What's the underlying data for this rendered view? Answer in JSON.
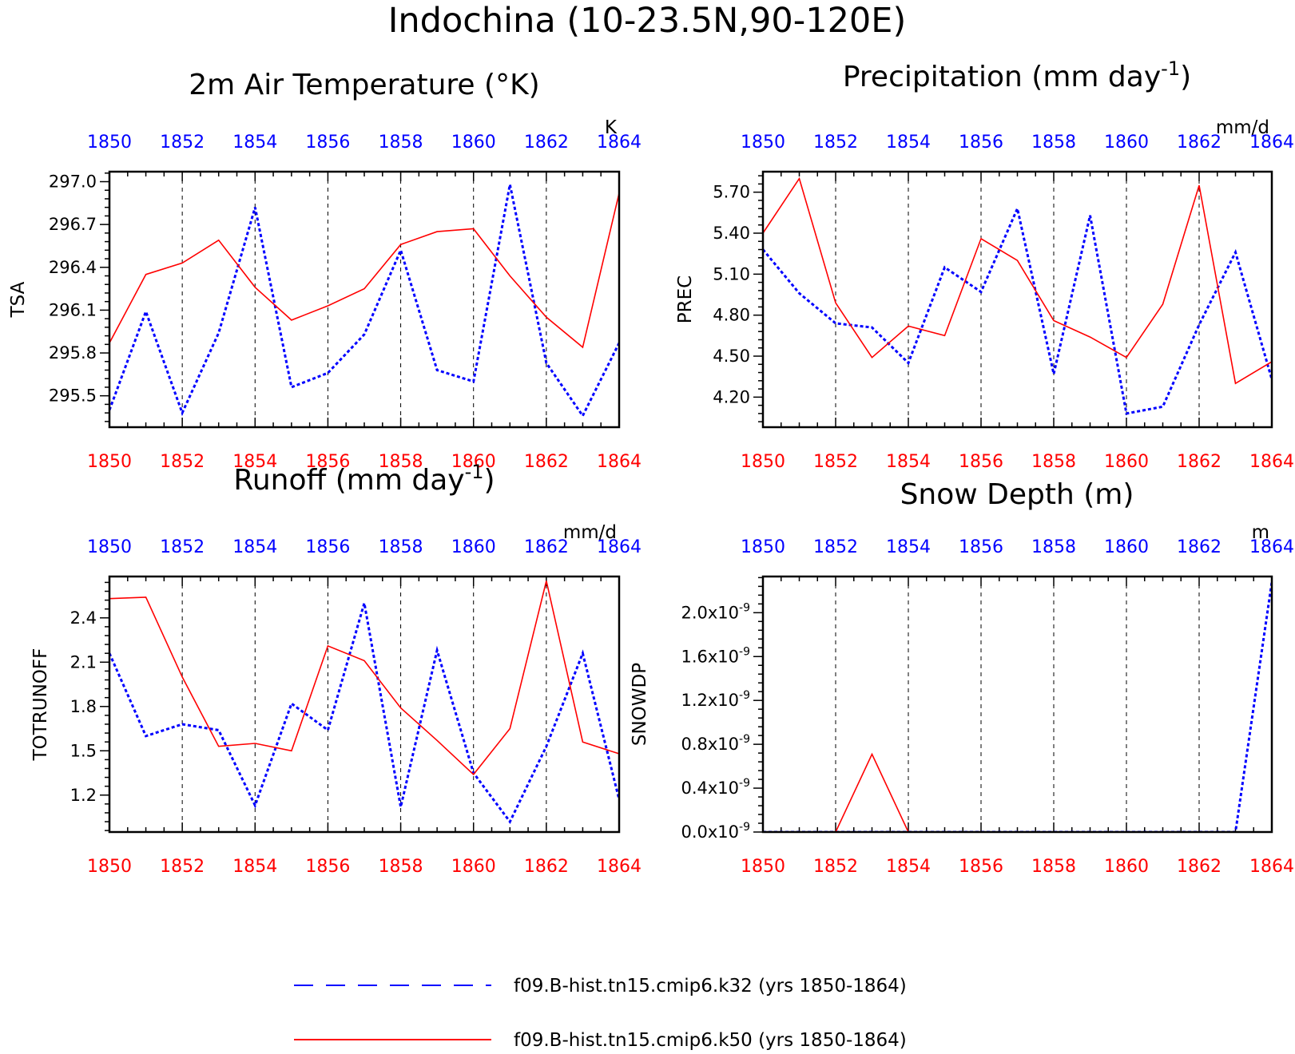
{
  "title": "Indochina (10-23.5N,90-120E)",
  "colors": {
    "k32": "#0000ff",
    "k50": "#ff0000",
    "axis": "#000000"
  },
  "legend": [
    {
      "series": "k32",
      "label": "f09.B-hist.tn15.cmip6.k32 (yrs 1850-1864)",
      "style": "dashed"
    },
    {
      "series": "k50",
      "label": "f09.B-hist.tn15.cmip6.k50 (yrs 1850-1864)",
      "style": "solid"
    }
  ],
  "chart_data": [
    {
      "type": "line",
      "title": "2m Air Temperature (°K)",
      "ylabel": "TSA",
      "units": "K",
      "xlim": [
        1850,
        1864
      ],
      "ylim": [
        295.28,
        297.07
      ],
      "yticks": [
        "295.5",
        "295.8",
        "296.1",
        "296.4",
        "296.7",
        "297.0"
      ],
      "ytick_values": [
        295.5,
        295.8,
        296.1,
        296.4,
        296.7,
        297.0
      ],
      "xticks": [
        "1850",
        "1852",
        "1854",
        "1856",
        "1858",
        "1860",
        "1862",
        "1864"
      ],
      "x": [
        1850,
        1851,
        1852,
        1853,
        1854,
        1855,
        1856,
        1857,
        1858,
        1859,
        1860,
        1861,
        1862,
        1863,
        1864
      ],
      "series": [
        {
          "key": "k32",
          "values": [
            295.4,
            296.09,
            295.38,
            295.94,
            296.82,
            295.56,
            295.66,
            295.93,
            296.52,
            295.68,
            295.6,
            296.98,
            295.73,
            295.36,
            295.87
          ]
        },
        {
          "key": "k50",
          "values": [
            295.87,
            296.35,
            296.43,
            296.59,
            296.26,
            296.03,
            296.13,
            296.25,
            296.56,
            296.65,
            296.67,
            296.34,
            296.05,
            295.84,
            296.92
          ]
        }
      ]
    },
    {
      "type": "line",
      "title": "Precipitation (mm day",
      "title_sup": "-1",
      "title_end": ")",
      "ylabel": "PREC",
      "units": "mm/d",
      "xlim": [
        1850,
        1864
      ],
      "ylim": [
        3.98,
        5.85
      ],
      "yticks": [
        "4.20",
        "4.50",
        "4.80",
        "5.10",
        "5.40",
        "5.70"
      ],
      "ytick_values": [
        4.2,
        4.5,
        4.8,
        5.1,
        5.4,
        5.7
      ],
      "xticks": [
        "1850",
        "1852",
        "1854",
        "1856",
        "1858",
        "1860",
        "1862",
        "1864"
      ],
      "x": [
        1850,
        1851,
        1852,
        1853,
        1854,
        1855,
        1856,
        1857,
        1858,
        1859,
        1860,
        1861,
        1862,
        1863,
        1864
      ],
      "series": [
        {
          "key": "k32",
          "values": [
            5.28,
            4.96,
            4.74,
            4.71,
            4.45,
            5.15,
            4.97,
            5.58,
            4.37,
            5.53,
            4.08,
            4.13,
            4.73,
            5.26,
            4.33
          ]
        },
        {
          "key": "k50",
          "values": [
            5.4,
            5.8,
            4.89,
            4.49,
            4.72,
            4.65,
            5.36,
            5.2,
            4.76,
            4.64,
            4.49,
            4.88,
            5.75,
            4.3,
            4.46
          ]
        }
      ]
    },
    {
      "type": "line",
      "title": "Runoff (mm day",
      "title_sup": "-1",
      "title_end": ")",
      "ylabel": "TOTRUNOFF",
      "units": "mm/d",
      "xlim": [
        1850,
        1864
      ],
      "ylim": [
        0.95,
        2.68
      ],
      "yticks": [
        "1.2",
        "1.5",
        "1.8",
        "2.1",
        "2.4"
      ],
      "ytick_values": [
        1.2,
        1.5,
        1.8,
        2.1,
        2.4
      ],
      "xticks": [
        "1850",
        "1852",
        "1854",
        "1856",
        "1858",
        "1860",
        "1862",
        "1864"
      ],
      "x": [
        1850,
        1851,
        1852,
        1853,
        1854,
        1855,
        1856,
        1857,
        1858,
        1859,
        1860,
        1861,
        1862,
        1863,
        1864
      ],
      "series": [
        {
          "key": "k32",
          "values": [
            2.16,
            1.6,
            1.68,
            1.64,
            1.13,
            1.82,
            1.64,
            2.5,
            1.12,
            2.18,
            1.35,
            1.02,
            1.53,
            2.16,
            1.17
          ]
        },
        {
          "key": "k50",
          "values": [
            2.53,
            2.54,
            2.0,
            1.53,
            1.55,
            1.5,
            2.21,
            2.11,
            1.79,
            1.57,
            1.34,
            1.65,
            2.65,
            1.56,
            1.48
          ]
        }
      ]
    },
    {
      "type": "line",
      "title": "Snow Depth (m)",
      "ylabel": "SNOWDP",
      "units": "m",
      "xlim": [
        1850,
        1864
      ],
      "ylim": [
        0,
        2.33
      ],
      "ytick_values": [
        0,
        0.4,
        0.8,
        1.2,
        1.6,
        2.0
      ],
      "yticks_base": [
        "0.0x10",
        "0.4x10",
        "0.8x10",
        "1.2x10",
        "1.6x10",
        "2.0x10"
      ],
      "yticks_exp": "-9",
      "xticks": [
        "1850",
        "1852",
        "1854",
        "1856",
        "1858",
        "1860",
        "1862",
        "1864"
      ],
      "x": [
        1850,
        1851,
        1852,
        1853,
        1854,
        1855,
        1856,
        1857,
        1858,
        1859,
        1860,
        1861,
        1862,
        1863,
        1864
      ],
      "series": [
        {
          "key": "k32",
          "values": [
            0,
            0,
            0,
            0,
            0,
            0,
            0,
            0,
            0,
            0,
            0,
            0,
            0,
            0,
            2.28
          ]
        },
        {
          "key": "k50",
          "values": [
            0,
            0,
            0,
            0.71,
            0,
            0,
            0,
            0,
            0,
            0,
            0,
            0,
            0,
            0,
            0
          ]
        }
      ]
    }
  ]
}
